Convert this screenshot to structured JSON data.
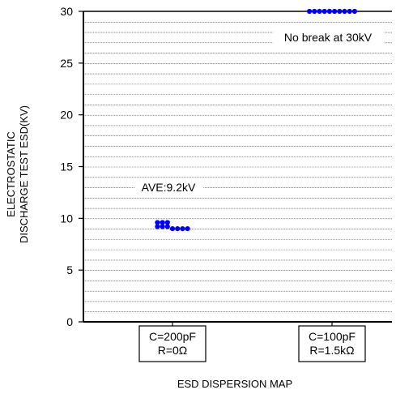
{
  "chart_data": {
    "type": "scatter",
    "title": "",
    "xlabel": "ESD DISPERSION MAP",
    "ylabel_lines": [
      "ELECTROSTATIC",
      "DISCHARGE TEST ESD(KV)"
    ],
    "ylim": [
      0,
      30
    ],
    "yticks": [
      0,
      5,
      10,
      15,
      20,
      25,
      30
    ],
    "grid": true,
    "categories": [
      {
        "lines": [
          "C=200pF",
          "R=0Ω"
        ]
      },
      {
        "lines": [
          "C=100pF",
          "R=1.5kΩ"
        ]
      }
    ],
    "series": [
      {
        "category": 0,
        "color": "#0000ee",
        "points": [
          {
            "offset": -3,
            "y": 9.6
          },
          {
            "offset": -2,
            "y": 9.6
          },
          {
            "offset": -1,
            "y": 9.6
          },
          {
            "offset": -3,
            "y": 9.2
          },
          {
            "offset": -2,
            "y": 9.2
          },
          {
            "offset": -1,
            "y": 9.2
          },
          {
            "offset": 0,
            "y": 9.0
          },
          {
            "offset": 1,
            "y": 9.0
          },
          {
            "offset": 2,
            "y": 9.0
          },
          {
            "offset": 3,
            "y": 9.0
          }
        ]
      },
      {
        "category": 1,
        "color": "#0000ee",
        "points": [
          {
            "offset": -4.5,
            "y": 30
          },
          {
            "offset": -3.5,
            "y": 30
          },
          {
            "offset": -2.5,
            "y": 30
          },
          {
            "offset": -1.5,
            "y": 30
          },
          {
            "offset": -0.5,
            "y": 30
          },
          {
            "offset": 0.5,
            "y": 30
          },
          {
            "offset": 1.5,
            "y": 30
          },
          {
            "offset": 2.5,
            "y": 30
          },
          {
            "offset": 3.5,
            "y": 30
          },
          {
            "offset": 4.5,
            "y": 30
          }
        ]
      }
    ],
    "annotations": [
      {
        "text": "AVE:9.2kV",
        "category": 0,
        "y": 13
      },
      {
        "text": "No break at 30kV",
        "category": 1,
        "y": 27.5
      }
    ]
  }
}
